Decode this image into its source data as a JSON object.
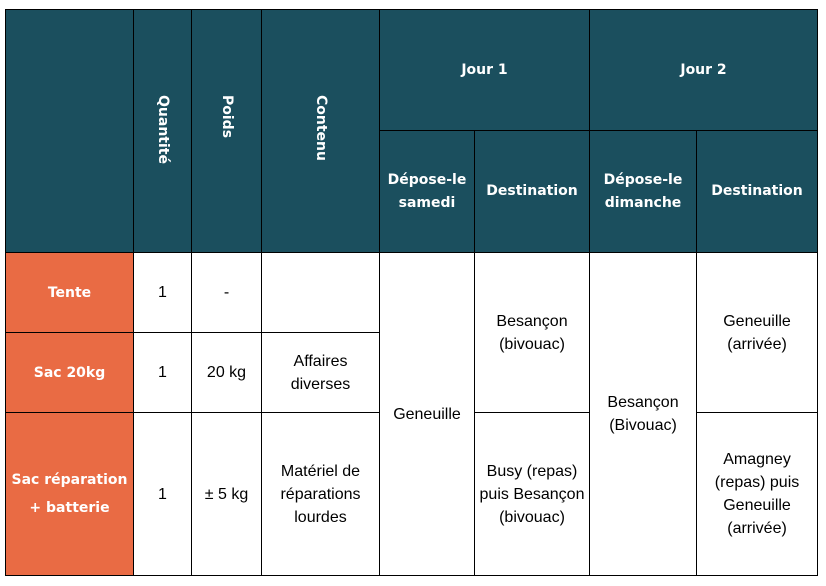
{
  "header": {
    "quantite": "Quantité",
    "poids": "Poids",
    "contenu": "Contenu",
    "jour1": "Jour 1",
    "jour2": "Jour 2",
    "jour1_depose": "Dépose-le samedi",
    "jour1_destination": "Destination",
    "jour2_depose": "Dépose-le dimanche",
    "jour2_destination": "Destination"
  },
  "rows": [
    {
      "item": "Tente",
      "quantite": "1",
      "poids": "-",
      "contenu": ""
    },
    {
      "item": "Sac 20kg",
      "quantite": "1",
      "poids": "20 kg",
      "contenu": "Affaires diverses"
    },
    {
      "item": "Sac réparation + batterie",
      "quantite": "1",
      "poids": "± 5 kg",
      "contenu": "Matériel de réparations lourdes"
    }
  ],
  "jour1": {
    "depose": "Geneuille",
    "destination_top": "Besançon (bivouac)",
    "destination_bottom": "Busy (repas) puis Besançon (bivouac)"
  },
  "jour2": {
    "depose": "Besançon (Bivouac)",
    "destination_top": "Geneuille (arrivée)",
    "destination_bottom": "Amagney (repas) puis Geneuille (arrivée)"
  },
  "colors": {
    "header_bg": "#1b4f5e",
    "category_bg": "#e96b44",
    "border": "#000000"
  }
}
